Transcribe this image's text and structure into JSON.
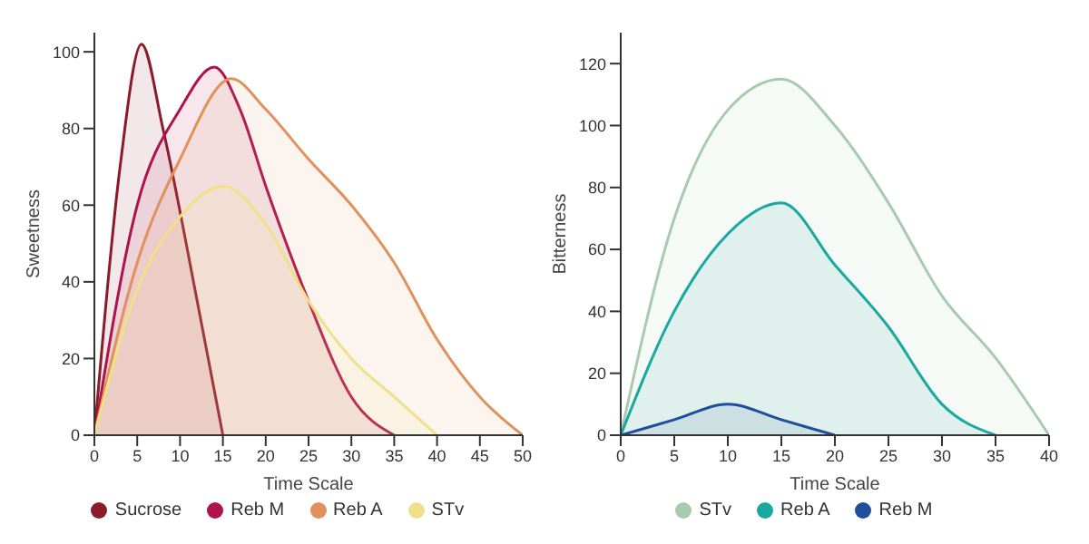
{
  "chart_data": [
    {
      "type": "area",
      "xlabel": "Time Scale",
      "ylabel": "Sweetness",
      "xlim": [
        0,
        50
      ],
      "xticks": [
        0,
        5,
        10,
        15,
        20,
        25,
        30,
        35,
        40,
        45,
        50
      ],
      "ylim": [
        0,
        105
      ],
      "yticks": [
        0,
        20,
        40,
        60,
        80,
        100
      ],
      "legend": "bottom",
      "grid": false,
      "marker": "none",
      "series": [
        {
          "name": "Sucrose",
          "color": "#8b1a2a",
          "x": [
            0,
            3,
            5.5,
            8,
            12,
            15
          ],
          "values": [
            0,
            70,
            102,
            80,
            35,
            0
          ]
        },
        {
          "name": "Reb M",
          "color": "#b0124e",
          "x": [
            0,
            5,
            10,
            14,
            17,
            20,
            25,
            30,
            35
          ],
          "values": [
            0,
            60,
            85,
            96,
            85,
            65,
            35,
            10,
            0
          ]
        },
        {
          "name": "Reb A",
          "color": "#e0915c",
          "x": [
            0,
            5,
            10,
            16,
            20,
            25,
            30,
            35,
            40,
            45,
            50
          ],
          "values": [
            0,
            45,
            72,
            93,
            85,
            72,
            60,
            45,
            25,
            10,
            0
          ]
        },
        {
          "name": "STv",
          "color": "#efe08a",
          "x": [
            0,
            5,
            10,
            15,
            20,
            25,
            30,
            35,
            40
          ],
          "values": [
            0,
            38,
            57,
            65,
            55,
            35,
            20,
            10,
            0
          ]
        }
      ]
    },
    {
      "type": "area",
      "xlabel": "Time Scale",
      "ylabel": "Bitterness",
      "xlim": [
        0,
        40
      ],
      "xticks": [
        0,
        5,
        10,
        15,
        20,
        25,
        30,
        35,
        40
      ],
      "ylim": [
        0,
        130
      ],
      "yticks": [
        0,
        20,
        40,
        60,
        80,
        100,
        120
      ],
      "legend": "bottom",
      "grid": false,
      "marker": "none",
      "series": [
        {
          "name": "STv",
          "color": "#a8cbb0",
          "x": [
            0,
            5,
            10,
            15,
            20,
            25,
            30,
            35,
            40
          ],
          "values": [
            0,
            70,
            105,
            115,
            100,
            75,
            45,
            25,
            0
          ]
        },
        {
          "name": "Reb A",
          "color": "#1aa8a0",
          "x": [
            0,
            5,
            10,
            15,
            20,
            25,
            30,
            35
          ],
          "values": [
            0,
            40,
            65,
            75,
            55,
            35,
            10,
            0
          ]
        },
        {
          "name": "Reb M",
          "color": "#1f4e9a",
          "x": [
            0,
            5,
            10,
            15,
            20
          ],
          "values": [
            0,
            5,
            10,
            5,
            0
          ]
        }
      ]
    }
  ]
}
